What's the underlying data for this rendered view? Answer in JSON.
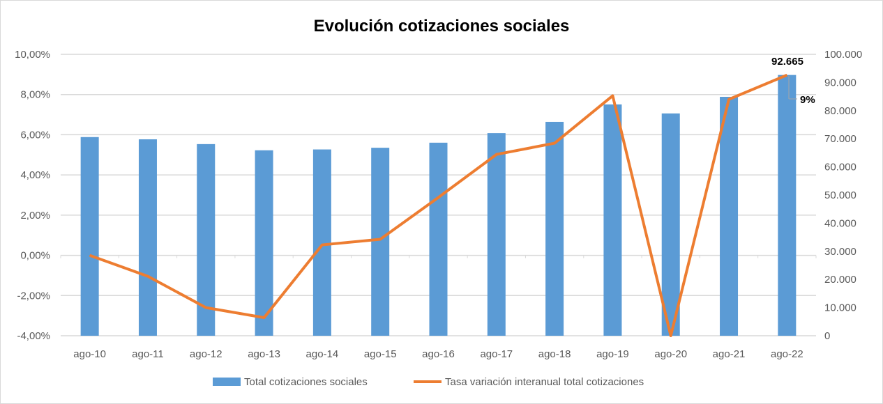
{
  "chart_data": {
    "type": "bar+line",
    "title": "Evolución cotizaciones sociales",
    "categories": [
      "ago-10",
      "ago-11",
      "ago-12",
      "ago-13",
      "ago-14",
      "ago-15",
      "ago-16",
      "ago-17",
      "ago-18",
      "ago-19",
      "ago-20",
      "ago-21",
      "ago-22"
    ],
    "series": [
      {
        "name": "Total cotizaciones sociales",
        "type": "bar",
        "axis": "right",
        "color": "#5b9bd5",
        "values": [
          70600,
          69800,
          68100,
          65900,
          66200,
          66800,
          68600,
          72000,
          76000,
          82200,
          79000,
          84900,
          92665
        ]
      },
      {
        "name": "Tasa variación interanual total cotizaciones",
        "type": "line",
        "axis": "left",
        "color": "#ed7d31",
        "values": [
          0.0,
          -1.04,
          -2.6,
          -3.1,
          0.52,
          0.8,
          2.88,
          5.02,
          5.58,
          7.94,
          -4.0,
          7.76,
          8.97
        ]
      }
    ],
    "left_axis": {
      "ylim": [
        -4,
        10
      ],
      "ticks": [
        "-4,00%",
        "-2,00%",
        "0,00%",
        "2,00%",
        "4,00%",
        "6,00%",
        "8,00%",
        "10,00%"
      ]
    },
    "right_axis": {
      "ylim": [
        0,
        100000
      ],
      "ticks": [
        "0",
        "10.000",
        "20.000",
        "30.000",
        "40.000",
        "50.000",
        "60.000",
        "70.000",
        "80.000",
        "90.000",
        "100.000"
      ]
    },
    "data_labels": {
      "bar_last": "92.665",
      "line_last": "9%"
    },
    "grid": true,
    "legend": "bottom"
  }
}
